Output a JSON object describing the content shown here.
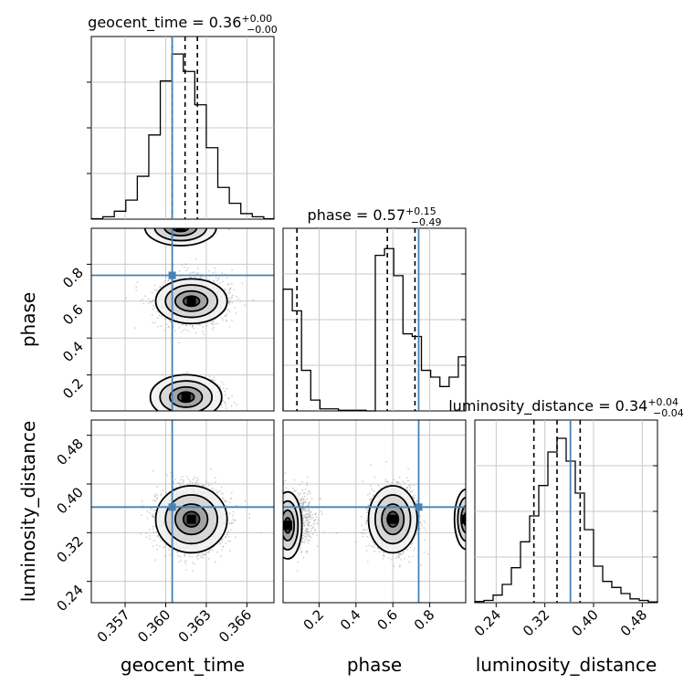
{
  "chart_data": {
    "type": "corner",
    "parameters": [
      "geocent_time",
      "phase",
      "luminosity_distance"
    ],
    "truth_color": "#4682b4",
    "panels": {
      "geocent_time": {
        "type": "histogram",
        "title_main": "geocent_time = 0.36",
        "title_sup": "+0.00",
        "title_sub": "−0.00",
        "xlim": [
          0.3545,
          0.368
        ],
        "bins": [
          0.3545,
          0.35535,
          0.3562,
          0.35705,
          0.3579,
          0.35875,
          0.3596,
          0.36045,
          0.3613,
          0.36215,
          0.363,
          0.36385,
          0.3647,
          0.36555,
          0.3664,
          0.36725,
          0.368
        ],
        "counts": [
          0.3,
          1.5,
          5,
          12,
          27,
          53,
          87,
          104,
          93,
          72,
          45,
          20,
          10,
          3.5,
          1.5,
          0.3
        ],
        "quantiles": [
          0.36048,
          0.36143,
          0.36234
        ],
        "truth": 0.36048,
        "ymax": 115
      },
      "phase": {
        "type": "histogram",
        "title_main": "phase = 0.57",
        "title_sup": "+0.15",
        "title_sub": "−0.49",
        "xlim": [
          0.005,
          0.995
        ],
        "bins": [
          0.005,
          0.055,
          0.105,
          0.155,
          0.205,
          0.255,
          0.305,
          0.355,
          0.405,
          0.455,
          0.505,
          0.555,
          0.605,
          0.655,
          0.705,
          0.755,
          0.805,
          0.855,
          0.905,
          0.955,
          0.995
        ],
        "counts": [
          90,
          74,
          30,
          8,
          1.5,
          1.5,
          0.5,
          0.5,
          0.5,
          0,
          115,
          120,
          100,
          57,
          55,
          30,
          25,
          18,
          25,
          40
        ],
        "quantiles": [
          0.08,
          0.57,
          0.72
        ],
        "truth": 0.74,
        "ymax": 135
      },
      "luminosity_distance": {
        "type": "histogram",
        "title_main": "luminosity_distance = 0.34",
        "title_sup": "+0.04",
        "title_sub": "−0.04",
        "xlim": [
          0.205,
          0.505
        ],
        "bins": [
          0.205,
          0.22,
          0.235,
          0.25,
          0.265,
          0.28,
          0.295,
          0.31,
          0.325,
          0.34,
          0.355,
          0.37,
          0.385,
          0.4,
          0.415,
          0.43,
          0.445,
          0.46,
          0.475,
          0.49,
          0.505
        ],
        "counts": [
          0.8,
          1.5,
          5,
          12,
          23,
          40,
          57,
          77,
          99,
          108,
          93,
          72,
          48,
          24,
          14,
          10,
          6,
          2.5,
          1.5,
          0.5
        ],
        "quantiles": [
          0.302,
          0.34,
          0.378
        ],
        "truth": 0.362,
        "ymax": 120
      }
    },
    "axes": {
      "geocent_time": {
        "label": "geocent_time",
        "ticks": [
          0.357,
          0.36,
          0.363,
          0.366
        ],
        "tick_labels": [
          "0.357",
          "0.360",
          "0.363",
          "0.366"
        ]
      },
      "phase": {
        "label": "phase",
        "ticks": [
          0.2,
          0.4,
          0.6,
          0.8
        ],
        "tick_labels": [
          "0.2",
          "0.4",
          "0.6",
          "0.8"
        ]
      },
      "luminosity_distance": {
        "label": "luminosity_distance",
        "ticks": [
          0.24,
          0.32,
          0.4,
          0.48
        ],
        "tick_labels": [
          "0.24",
          "0.32",
          "0.40",
          "0.48"
        ]
      }
    },
    "truths": {
      "geocent_time": 0.36048,
      "phase": 0.74,
      "luminosity_distance": 0.362
    },
    "posterior_modes": {
      "geocent_time": {
        "mean": 0.3619,
        "sd": 0.0012
      },
      "phase": [
        {
          "mean": 0.6,
          "sd": 0.06,
          "weight": 0.75
        },
        {
          "mean": 0.08,
          "sd": 0.05,
          "weight": 0.25
        }
      ],
      "luminosity_distance": {
        "mean": 0.342,
        "sd": 0.025
      }
    },
    "grid": true
  }
}
